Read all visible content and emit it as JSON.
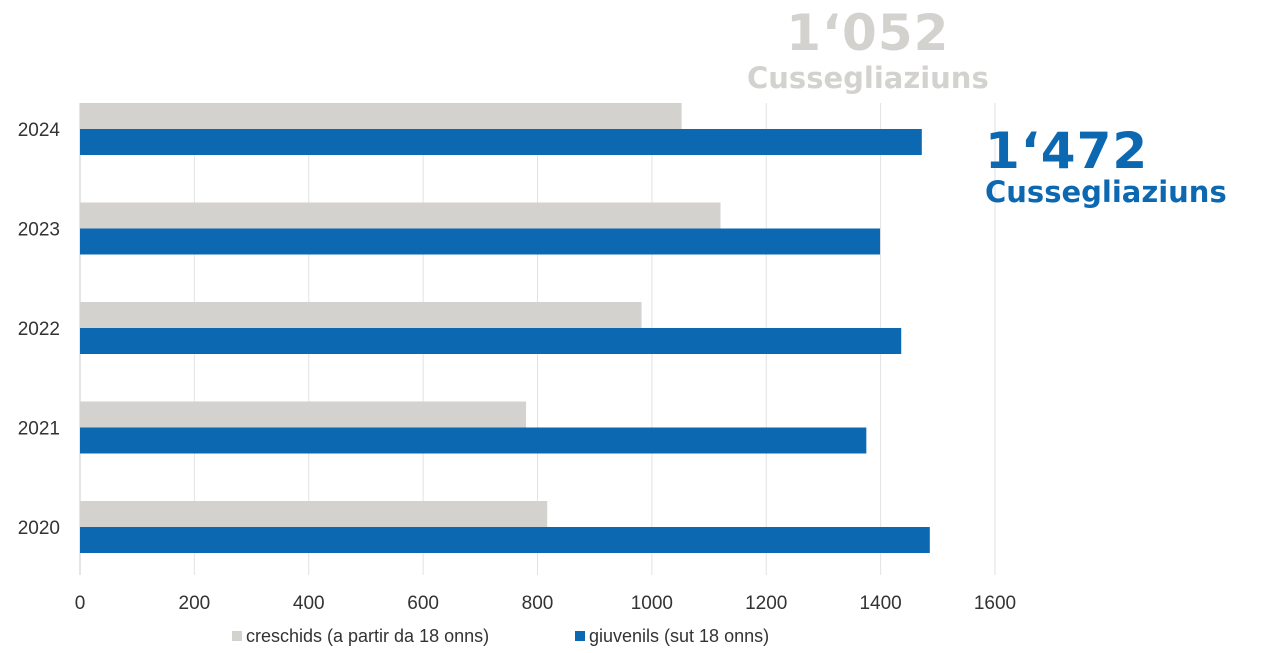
{
  "chart_data": {
    "type": "bar",
    "orientation": "horizontal",
    "categories": [
      "2024",
      "2023",
      "2022",
      "2021",
      "2020"
    ],
    "series": [
      {
        "name": "creschids (a partir da 18 onns)",
        "color": "#d3d2cf",
        "values": [
          1052,
          1120,
          982,
          780,
          817
        ]
      },
      {
        "name": "giuvenils (sut 18 onns)",
        "color": "#0b68b1",
        "values": [
          1472,
          1399,
          1436,
          1375,
          1486
        ]
      }
    ],
    "xlim": [
      0,
      1600
    ],
    "xticks": [
      "0",
      "200",
      "400",
      "600",
      "800",
      "1000",
      "1200",
      "1400",
      "1600"
    ],
    "grid": "vertical",
    "legend_position": "bottom"
  },
  "callouts": {
    "adults": {
      "number": "1‘052",
      "label": "Cussegliaziuns",
      "color": "#d3d2cf"
    },
    "youth": {
      "number": "1‘472",
      "label": "Cussegliaziuns",
      "color": "#0b68b1"
    }
  }
}
